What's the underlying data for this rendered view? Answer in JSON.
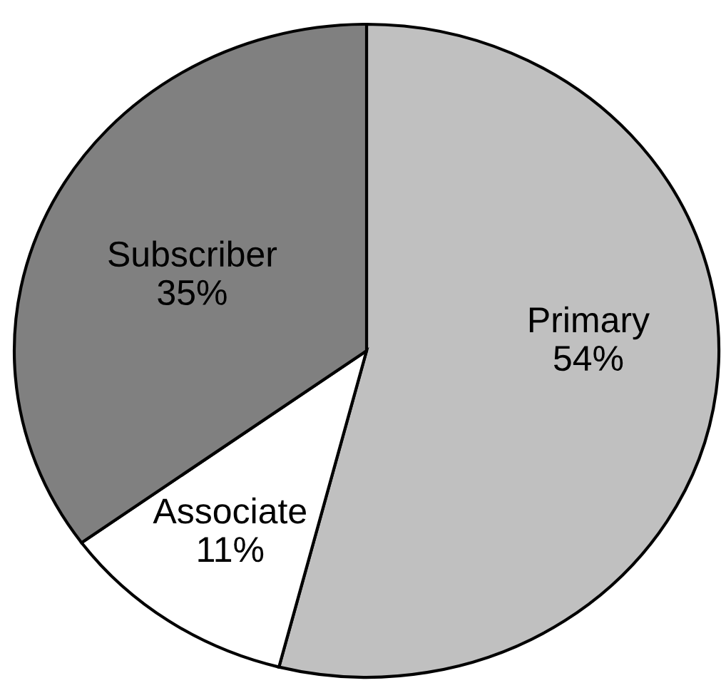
{
  "chart_data": {
    "type": "pie",
    "categories": [
      "Primary",
      "Associate",
      "Subscriber"
    ],
    "values": [
      54,
      11,
      35
    ],
    "colors": [
      "#c0c0c0",
      "#ffffff",
      "#808080"
    ],
    "value_labels": [
      "54%",
      "11%",
      "35%"
    ]
  }
}
